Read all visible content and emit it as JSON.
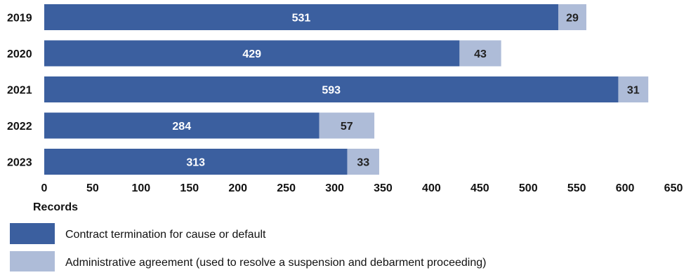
{
  "chart_data": {
    "type": "bar",
    "orientation": "horizontal",
    "stacked": true,
    "categories": [
      "2019",
      "2020",
      "2021",
      "2022",
      "2023"
    ],
    "series": [
      {
        "name": "Contract termination for cause or default",
        "color": "#3b5f9f",
        "values": [
          531,
          429,
          593,
          284,
          313
        ]
      },
      {
        "name": "Administrative agreement (used to resolve a suspension and debarment proceeding)",
        "color": "#aebcd8",
        "values": [
          29,
          43,
          31,
          57,
          33
        ]
      }
    ],
    "xlabel": "Records",
    "xlim": [
      0,
      650
    ],
    "xticks": [
      "0",
      "50",
      "100",
      "150",
      "200",
      "250",
      "300",
      "350",
      "400",
      "450",
      "500",
      "550",
      "600",
      "650"
    ],
    "grid": false,
    "legend_position": "bottom"
  }
}
